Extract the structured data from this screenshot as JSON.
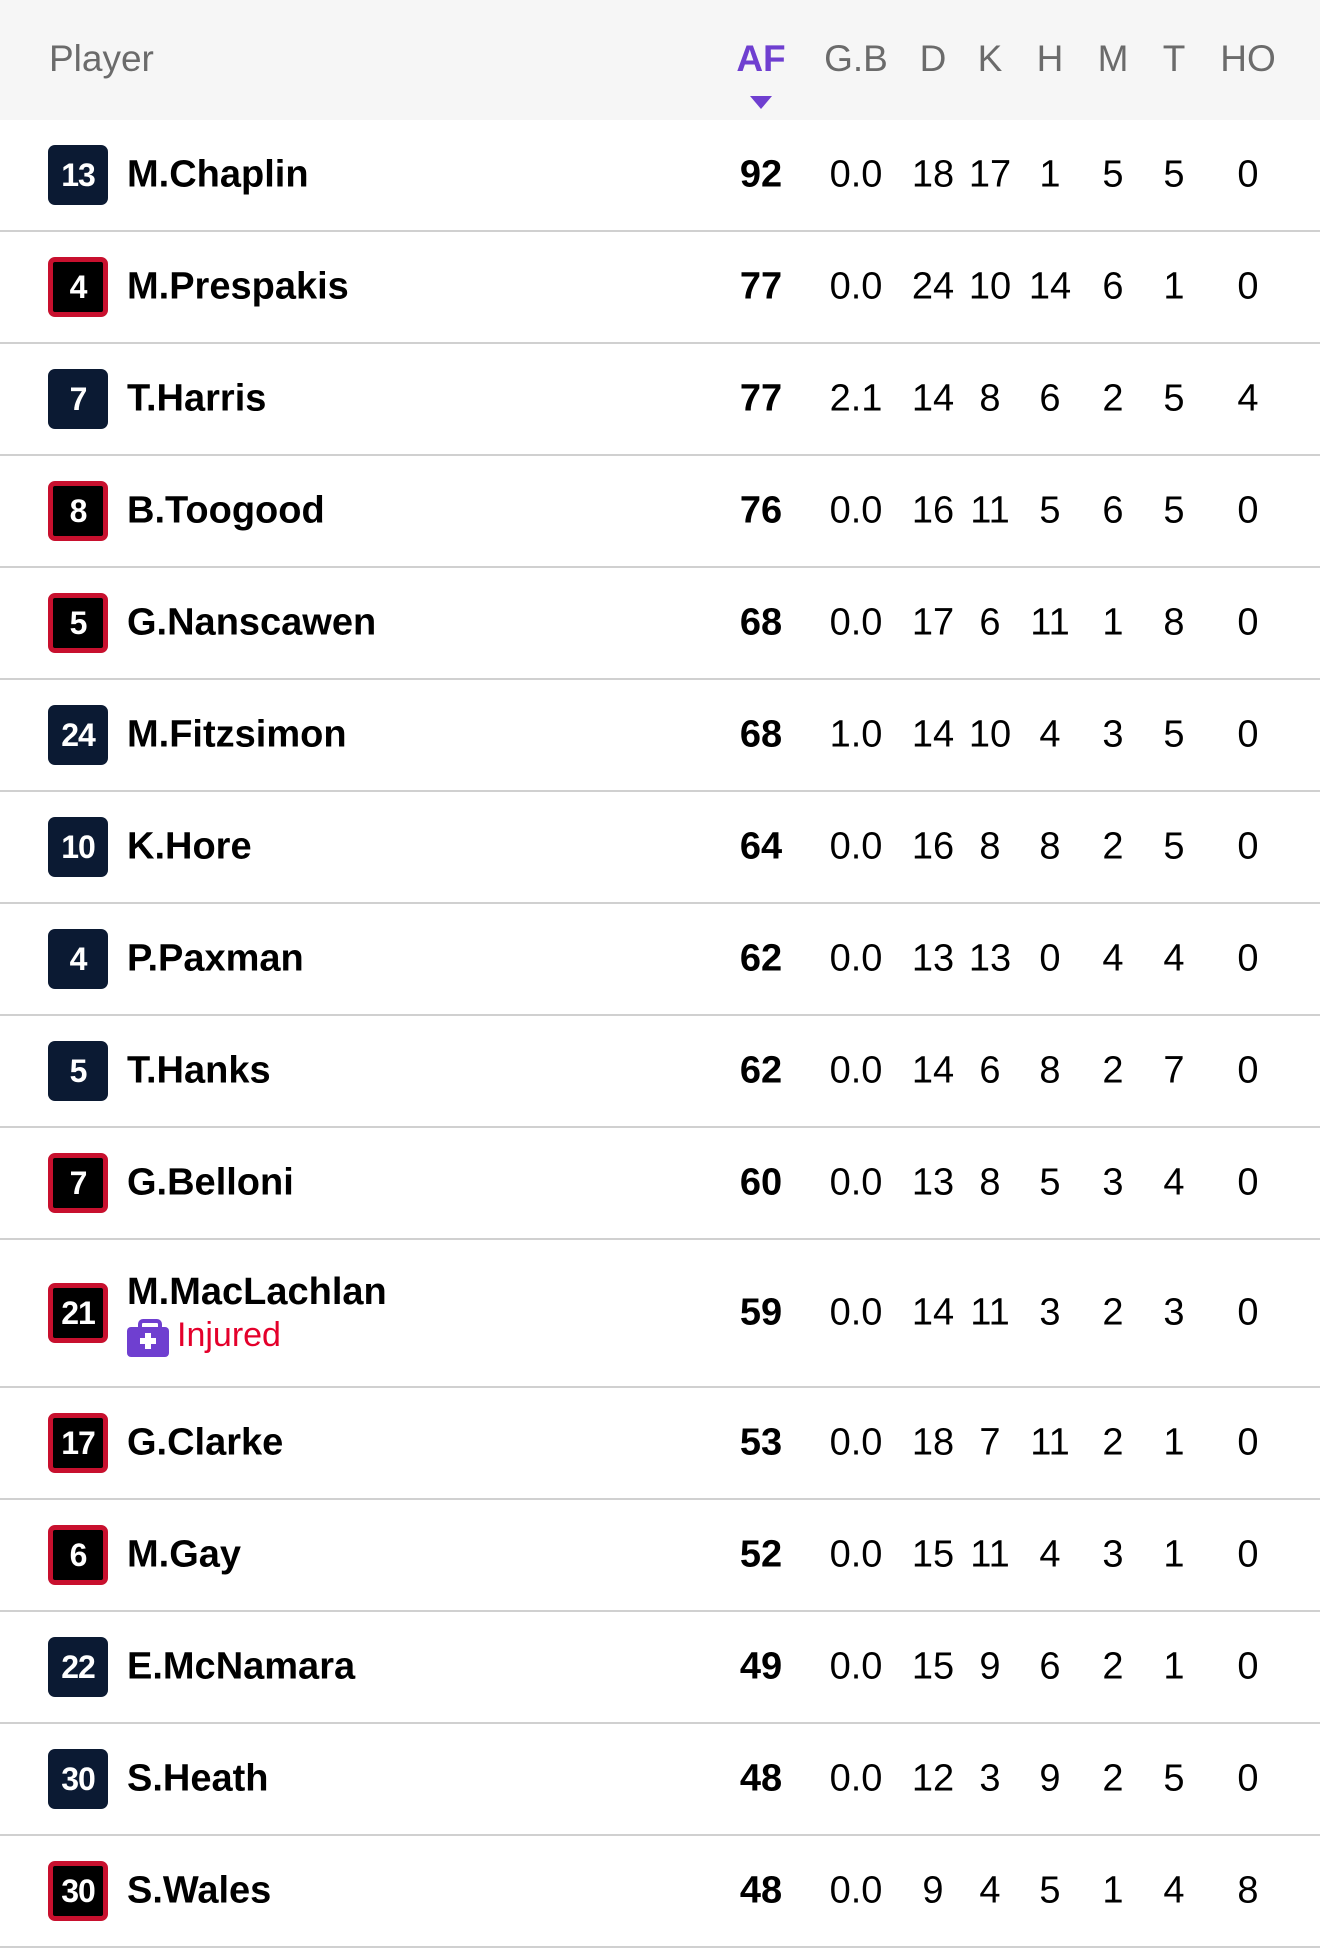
{
  "header": {
    "player": "Player",
    "columns": [
      "AF",
      "G.B",
      "D",
      "K",
      "H",
      "M",
      "T",
      "HO"
    ],
    "sorted_column": "AF",
    "sort_direction": "descending"
  },
  "colors": {
    "accent": "#6f3fd0",
    "navy_badge": "#0b1a33",
    "red_badge": "#c8102e",
    "injured": "#e4002b"
  },
  "players": [
    {
      "number": "13",
      "badge": "navy",
      "name": "M.Chaplin",
      "stats": [
        "92",
        "0.0",
        "18",
        "17",
        "1",
        "5",
        "5",
        "0"
      ]
    },
    {
      "number": "4",
      "badge": "red",
      "name": "M.Prespakis",
      "stats": [
        "77",
        "0.0",
        "24",
        "10",
        "14",
        "6",
        "1",
        "0"
      ]
    },
    {
      "number": "7",
      "badge": "navy",
      "name": "T.Harris",
      "stats": [
        "77",
        "2.1",
        "14",
        "8",
        "6",
        "2",
        "5",
        "4"
      ]
    },
    {
      "number": "8",
      "badge": "red",
      "name": "B.Toogood",
      "stats": [
        "76",
        "0.0",
        "16",
        "11",
        "5",
        "6",
        "5",
        "0"
      ]
    },
    {
      "number": "5",
      "badge": "red",
      "name": "G.Nanscawen",
      "stats": [
        "68",
        "0.0",
        "17",
        "6",
        "11",
        "1",
        "8",
        "0"
      ]
    },
    {
      "number": "24",
      "badge": "navy",
      "name": "M.Fitzsimon",
      "stats": [
        "68",
        "1.0",
        "14",
        "10",
        "4",
        "3",
        "5",
        "0"
      ]
    },
    {
      "number": "10",
      "badge": "navy",
      "name": "K.Hore",
      "stats": [
        "64",
        "0.0",
        "16",
        "8",
        "8",
        "2",
        "5",
        "0"
      ]
    },
    {
      "number": "4",
      "badge": "navy",
      "name": "P.Paxman",
      "stats": [
        "62",
        "0.0",
        "13",
        "13",
        "0",
        "4",
        "4",
        "0"
      ]
    },
    {
      "number": "5",
      "badge": "navy",
      "name": "T.Hanks",
      "stats": [
        "62",
        "0.0",
        "14",
        "6",
        "8",
        "2",
        "7",
        "0"
      ]
    },
    {
      "number": "7",
      "badge": "red",
      "name": "G.Belloni",
      "stats": [
        "60",
        "0.0",
        "13",
        "8",
        "5",
        "3",
        "4",
        "0"
      ]
    },
    {
      "number": "21",
      "badge": "red",
      "name": "M.MacLachlan",
      "status": "Injured",
      "status_icon": "medical-kit-icon",
      "stats": [
        "59",
        "0.0",
        "14",
        "11",
        "3",
        "2",
        "3",
        "0"
      ]
    },
    {
      "number": "17",
      "badge": "red",
      "name": "G.Clarke",
      "stats": [
        "53",
        "0.0",
        "18",
        "7",
        "11",
        "2",
        "1",
        "0"
      ]
    },
    {
      "number": "6",
      "badge": "red",
      "name": "M.Gay",
      "stats": [
        "52",
        "0.0",
        "15",
        "11",
        "4",
        "3",
        "1",
        "0"
      ]
    },
    {
      "number": "22",
      "badge": "navy",
      "name": "E.McNamara",
      "stats": [
        "49",
        "0.0",
        "15",
        "9",
        "6",
        "2",
        "1",
        "0"
      ]
    },
    {
      "number": "30",
      "badge": "navy",
      "name": "S.Heath",
      "stats": [
        "48",
        "0.0",
        "12",
        "3",
        "9",
        "2",
        "5",
        "0"
      ]
    },
    {
      "number": "30",
      "badge": "red",
      "name": "S.Wales",
      "stats": [
        "48",
        "0.0",
        "9",
        "4",
        "5",
        "1",
        "4",
        "8"
      ]
    }
  ]
}
